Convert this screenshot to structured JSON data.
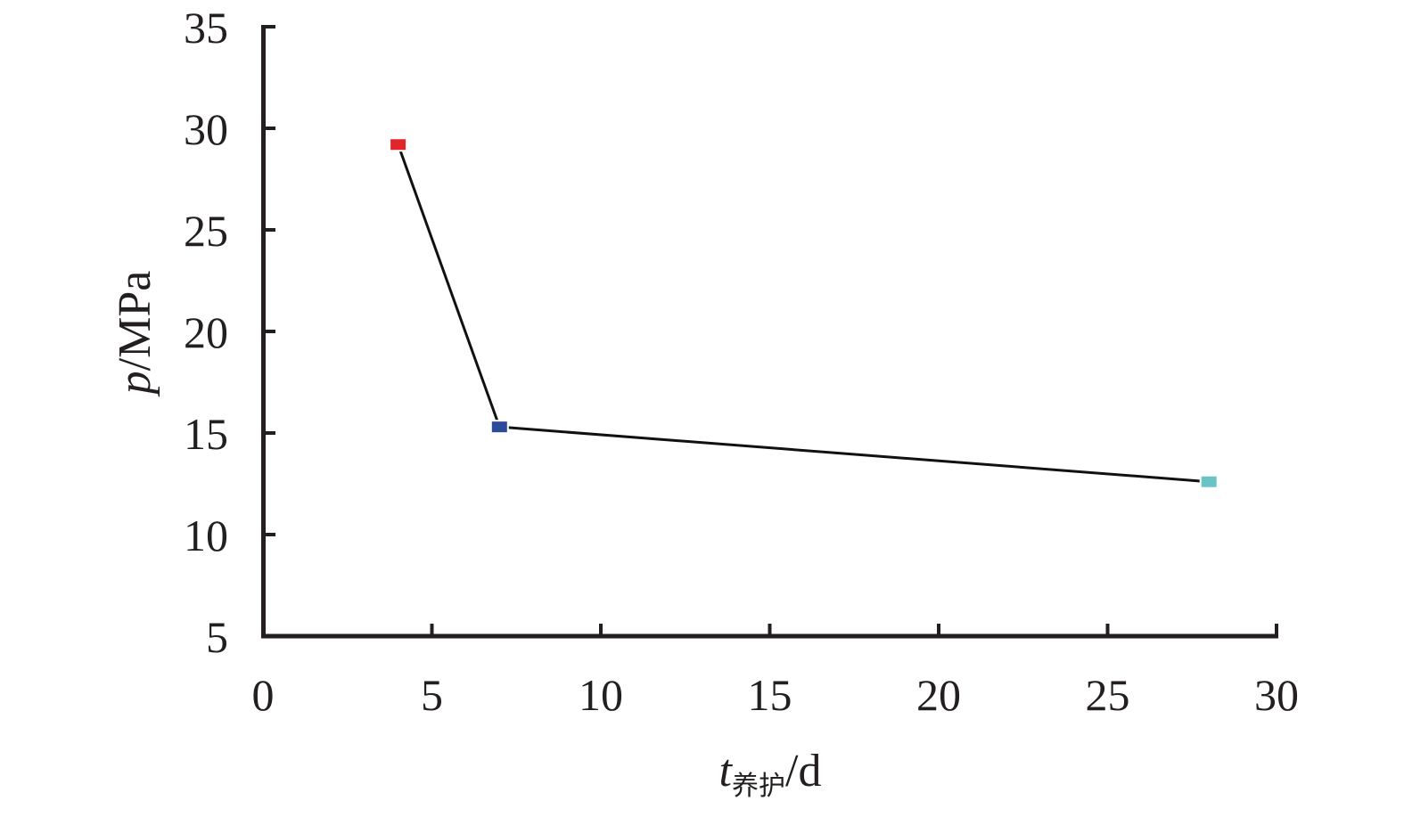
{
  "chart_data": {
    "type": "line",
    "x": [
      4,
      7,
      28
    ],
    "y": [
      29.2,
      15.3,
      12.6
    ],
    "point_colors": [
      "#e0262b",
      "#2b4a9a",
      "#6cc3c6"
    ],
    "line_color": "#111111",
    "xlim": [
      0,
      30
    ],
    "ylim": [
      5,
      35
    ],
    "x_ticks": [
      0,
      5,
      10,
      15,
      20,
      25,
      30
    ],
    "y_ticks": [
      5,
      10,
      15,
      20,
      25,
      30,
      35
    ],
    "x_tick_labels": [
      "0",
      "5",
      "10",
      "15",
      "20",
      "25",
      "30"
    ],
    "y_tick_labels": [
      "5",
      "10",
      "15",
      "20",
      "25",
      "30",
      "35"
    ],
    "xlabel": {
      "main": "t",
      "sub": "养护",
      "unit": "/d"
    },
    "ylabel": {
      "main": "p",
      "unit": "/MPa"
    },
    "grid": false
  }
}
